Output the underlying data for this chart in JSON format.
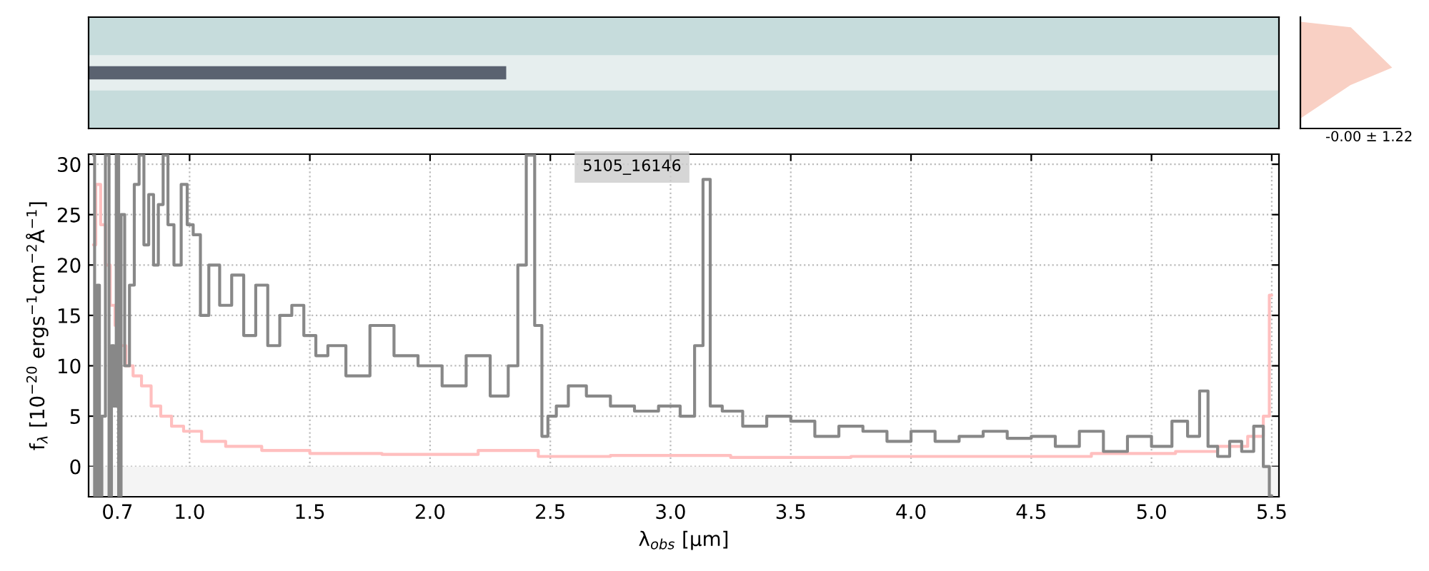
{
  "chart_data": {
    "type": "step",
    "xlabel": "λ$_{obs}$ [μm]",
    "ylabel": "f$_{λ}$ [10$^{−20}$ ergs$^{−1}$cm$^{−2}$Å$^{−1}$]",
    "annotations": [
      "5105_16146",
      "-0.00 ± 1.22"
    ],
    "xlim": [
      0.58,
      5.53
    ],
    "xticks": [
      0.7,
      {
        "value": 1.0,
        "label": "1.0"
      },
      1.5,
      {
        "value": 2.0,
        "label": "2.0"
      },
      2.5,
      {
        "value": 3.0,
        "label": "3.0"
      },
      3.5,
      {
        "value": 4.0,
        "label": "4.0"
      },
      4.5,
      {
        "value": 5.0,
        "label": "5.0"
      },
      5.5
    ],
    "ylim": [
      -3,
      31
    ],
    "yticks": [
      0,
      5,
      10,
      15,
      20,
      25,
      30
    ],
    "grid": true,
    "line_style": "solid",
    "bands": [
      {
        "axis": "y",
        "from": -3,
        "to": 0,
        "color": "#f4f4f4"
      }
    ],
    "series": [
      {
        "color": "#ffbfbf",
        "x": [
          0.6,
          0.62,
          0.64,
          0.66,
          0.68,
          0.7,
          0.72,
          0.75,
          0.78,
          0.82,
          0.86,
          0.9,
          0.95,
          1.0,
          1.1,
          1.2,
          1.4,
          1.6,
          2.0,
          2.4,
          2.5,
          3.0,
          3.5,
          4.0,
          4.5,
          5.0,
          5.2,
          5.35,
          5.45,
          5.48,
          5.5
        ],
        "values": [
          22,
          28,
          24,
          20,
          16,
          14,
          12,
          10,
          9,
          8,
          6,
          5,
          4,
          3.5,
          2.5,
          2,
          1.6,
          1.3,
          1.2,
          1.6,
          1.0,
          1.1,
          0.9,
          1.0,
          1.0,
          1.3,
          1.5,
          2.0,
          3,
          5,
          17
        ]
      },
      {
        "color": "#888888",
        "x": [
          0.6,
          0.61,
          0.62,
          0.63,
          0.64,
          0.66,
          0.67,
          0.68,
          0.69,
          0.7,
          0.71,
          0.72,
          0.74,
          0.76,
          0.78,
          0.8,
          0.82,
          0.84,
          0.86,
          0.88,
          0.9,
          0.92,
          0.95,
          0.98,
          1.0,
          1.03,
          1.06,
          1.1,
          1.15,
          1.2,
          1.25,
          1.3,
          1.35,
          1.4,
          1.45,
          1.5,
          1.55,
          1.6,
          1.7,
          1.8,
          1.9,
          2.0,
          2.1,
          2.2,
          2.3,
          2.35,
          2.38,
          2.42,
          2.45,
          2.48,
          2.5,
          2.55,
          2.6,
          2.7,
          2.8,
          2.9,
          3.0,
          3.08,
          3.12,
          3.15,
          3.18,
          3.25,
          3.35,
          3.45,
          3.55,
          3.65,
          3.75,
          3.85,
          3.95,
          4.05,
          4.15,
          4.25,
          4.35,
          4.45,
          4.55,
          4.65,
          4.75,
          4.85,
          4.95,
          5.05,
          5.12,
          5.18,
          5.22,
          5.25,
          5.3,
          5.35,
          5.4,
          5.45,
          5.48,
          5.5
        ],
        "values": [
          30.9,
          -2.9,
          18,
          -2.9,
          5,
          30.9,
          -2.9,
          12,
          6,
          30.9,
          -2.9,
          25,
          10,
          18,
          28,
          30.9,
          22,
          27,
          20,
          26,
          30.9,
          24,
          20,
          28,
          24,
          23,
          15,
          20,
          16,
          19,
          13,
          18,
          12,
          15,
          16,
          13,
          11,
          12,
          9,
          14,
          11,
          10,
          8,
          11,
          7,
          10,
          20,
          30.9,
          14,
          3,
          5,
          6,
          8,
          7,
          6,
          5.5,
          6,
          5,
          12,
          28.5,
          6,
          5.5,
          4,
          5,
          4.5,
          3,
          4,
          3.5,
          2.5,
          3.5,
          2.5,
          3,
          3.5,
          2.8,
          3,
          2,
          3.5,
          1.5,
          3,
          2,
          4.5,
          3,
          7.5,
          2,
          1,
          2.5,
          1.5,
          4,
          0,
          -2.9
        ]
      }
    ]
  }
}
